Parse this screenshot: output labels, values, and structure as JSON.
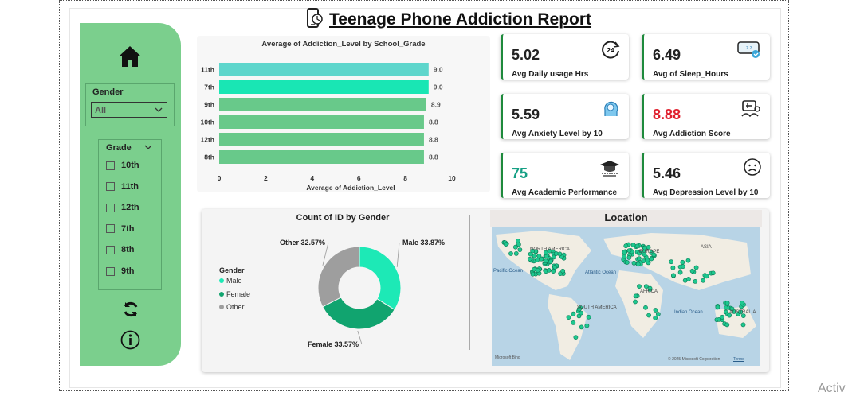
{
  "report": {
    "title": "Teenage Phone Addiction Report"
  },
  "sidebar": {
    "gender_label": "Gender",
    "gender_value": "All",
    "grade_label": "Grade",
    "grades": [
      "10th",
      "11th",
      "12th",
      "7th",
      "8th",
      "9th"
    ]
  },
  "bar_chart": {
    "title": "Average of Addiction_Level by School_Grade",
    "xlabel": "Average of Addiction_Level",
    "ticks": [
      "0",
      "2",
      "4",
      "6",
      "8",
      "10"
    ]
  },
  "chart_data": [
    {
      "type": "bar",
      "orientation": "horizontal",
      "title": "Average of Addiction_Level by School_Grade",
      "xlabel": "Average of Addiction_Level",
      "ylabel": "",
      "categories": [
        "11th",
        "7th",
        "9th",
        "10th",
        "12th",
        "8th"
      ],
      "values": [
        9.0,
        9.0,
        8.9,
        8.8,
        8.8,
        8.8
      ],
      "value_labels": [
        "9.0",
        "9.0",
        "8.9",
        "8.8",
        "8.8",
        "8.8"
      ],
      "xlim": [
        0,
        10
      ],
      "colors": [
        "#5ed6cc",
        "#19e6b4",
        "#68c98a",
        "#68c98a",
        "#68c98a",
        "#68c98a"
      ]
    },
    {
      "type": "pie",
      "donut": true,
      "title": "Count of ID by Gender",
      "legend_title": "Gender",
      "categories": [
        "Male",
        "Female",
        "Other"
      ],
      "values": [
        33.87,
        33.57,
        32.57
      ],
      "slice_labels": [
        "Male 33.87%",
        "Female 33.57%",
        "Other 32.57%"
      ],
      "colors": [
        "#1de9b6",
        "#11a46f",
        "#9e9e9e"
      ],
      "legend_placement": "left"
    }
  ],
  "kpis": [
    {
      "value": "5.02",
      "label": "Avg Daily usage Hrs",
      "icon": "clock-24-icon",
      "color": "#222222"
    },
    {
      "value": "6.49",
      "label": "Avg of Sleep_Hours",
      "icon": "sleep-icon",
      "color": "#222222"
    },
    {
      "value": "5.59",
      "label": "Avg Anxiety Level by 10",
      "icon": "head-brain-icon",
      "color": "#222222"
    },
    {
      "value": "8.88",
      "label": "Avg Addiction Score",
      "icon": "addiction-icon",
      "color": "#e0202e"
    },
    {
      "value": "75",
      "label": "Avg Academic Performance",
      "icon": "graduation-cap-icon",
      "color": "#16a085"
    },
    {
      "value": "5.46",
      "label": "Avg Depression Level by 10",
      "icon": "sad-face-icon",
      "color": "#222222"
    }
  ],
  "map": {
    "title": "Location",
    "labels": {
      "north_america": "NORTH AMERICA",
      "europe": "EUROPE",
      "asia": "ASIA",
      "africa": "AFRICA",
      "south_america": "SOUTH AMERICA",
      "pacific": "Pacific Ocean",
      "atlantic": "Atlantic Ocean",
      "indian": "Indian Ocean",
      "australia": "AUSTRALIA"
    },
    "attribution": "© 2025 Microsoft Corporation",
    "terms": "Terms",
    "bing": "Microsoft Bing"
  },
  "watermark": "Activ"
}
